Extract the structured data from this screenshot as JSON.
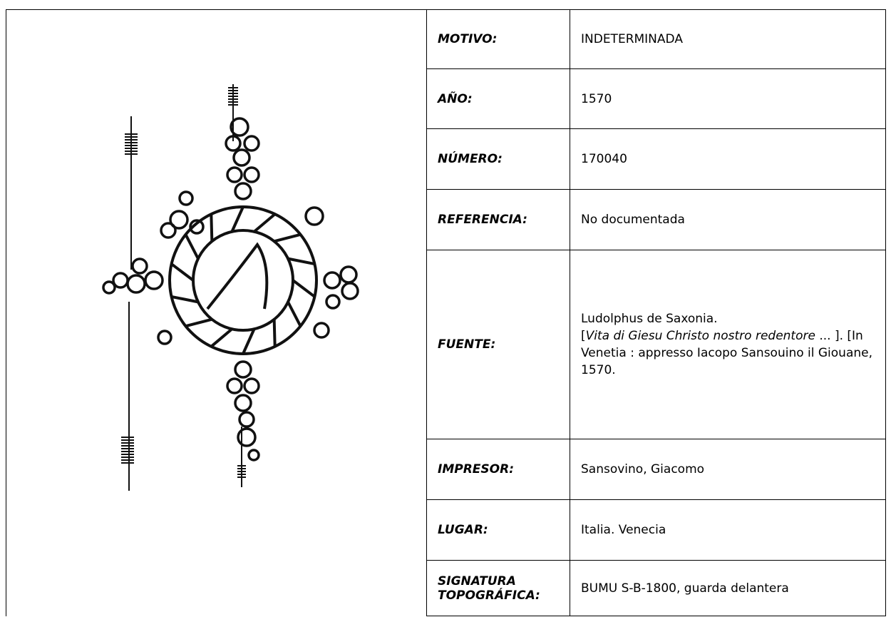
{
  "table": {
    "rows": [
      {
        "label": "MOTIVO:",
        "value": "INDETERMINADA"
      },
      {
        "label": "AÑO:",
        "value": "1570"
      },
      {
        "label": "NÚMERO:",
        "value": "170040"
      },
      {
        "label": "REFERENCIA:",
        "value": "No documentada"
      },
      {
        "label": "FUENTE:",
        "value": {
          "line1": "Ludolphus de Saxonia.",
          "open": "[",
          "title": "Vita di Giesu Christo nostro redentore",
          "rest": " ... ]. [In Venetia : appresso Iacopo Sansouino il Giouane, 1570."
        }
      },
      {
        "label": "IMPRESOR:",
        "value": "Sansovino, Giacomo"
      },
      {
        "label": "LUGAR:",
        "value": "Italia. Venecia"
      },
      {
        "label": "SIGNATURA TOPOGRÁFICA:",
        "value": "BUMU S-B-1800, guarda delantera"
      }
    ]
  }
}
